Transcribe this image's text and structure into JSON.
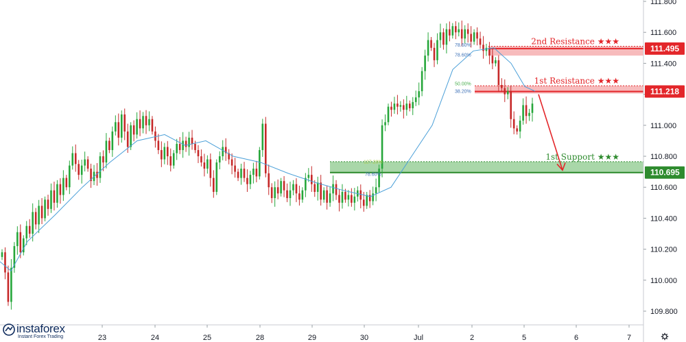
{
  "chart_data": {
    "type": "candlestick",
    "y_axis": {
      "position": "right",
      "range": [
        109.72,
        111.84
      ],
      "ticks": [
        "109.800",
        "110.000",
        "110.200",
        "110.400",
        "110.600",
        "110.800",
        "111.000",
        "111.200",
        "111.400",
        "111.600",
        "111.800"
      ]
    },
    "x_axis": {
      "labels": [
        "23",
        "24",
        "25",
        "28",
        "29",
        "30",
        "Jul",
        "2",
        "5",
        "6",
        "7"
      ]
    },
    "grid": false,
    "zones": [
      {
        "name": "2nd Resistance",
        "label": "2nd Resistance",
        "stars": "★★★",
        "price": 111.495,
        "price_label": "111.495",
        "low": 111.45,
        "high": 111.51,
        "color": "#e3262a",
        "fill": "#f4a4a6"
      },
      {
        "name": "1st Resistance",
        "label": "1st Resistance",
        "stars": "★★★",
        "price": 111.218,
        "price_label": "111.218",
        "low": 111.205,
        "high": 111.255,
        "color": "#e3262a",
        "fill": "#f4a4a6"
      },
      {
        "name": "1st Support",
        "label": "1st Support",
        "stars": "★★★",
        "price": 110.695,
        "price_label": "110.695",
        "low": 110.69,
        "high": 110.765,
        "color": "#2e8b2e",
        "fill": "#8cc98c"
      }
    ],
    "fib_labels": [
      {
        "text": "78.60%",
        "price": 111.52,
        "color": "#3b6fb6"
      },
      {
        "text": "78.60%",
        "price": 111.455,
        "color": "#3b6fb6"
      },
      {
        "text": "50.00%",
        "price": 111.27,
        "color": "#4caf50"
      },
      {
        "text": "38.20%",
        "price": 111.22,
        "color": "#3b6fb6"
      },
      {
        "text": "127.20%",
        "price": 110.765,
        "color": "#a6c94a"
      },
      {
        "text": "78.60%",
        "price": 110.685,
        "color": "#3b6fb6"
      }
    ],
    "closes": [
      110.18,
      110.05,
      109.86,
      110.08,
      110.22,
      110.31,
      110.18,
      110.27,
      110.35,
      110.3,
      110.44,
      110.36,
      110.48,
      110.4,
      110.52,
      110.46,
      110.58,
      110.5,
      110.62,
      110.55,
      110.66,
      110.6,
      110.74,
      110.82,
      110.75,
      110.68,
      110.74,
      110.78,
      110.72,
      110.64,
      110.7,
      110.66,
      110.8,
      110.76,
      110.9,
      110.84,
      110.96,
      111.02,
      110.92,
      111.07,
      110.96,
      110.86,
      111.0,
      110.94,
      111.04,
      110.98,
      111.06,
      111.0,
      111.04,
      110.96,
      110.9,
      110.84,
      110.78,
      110.86,
      110.8,
      110.74,
      110.82,
      110.88,
      110.84,
      110.9,
      110.86,
      110.92,
      110.88,
      110.84,
      110.8,
      110.76,
      110.72,
      110.78,
      110.66,
      110.57,
      110.76,
      110.8,
      110.86,
      110.82,
      110.78,
      110.74,
      110.7,
      110.66,
      110.72,
      110.66,
      110.62,
      110.68,
      110.72,
      110.67,
      110.84,
      111.01,
      110.69,
      110.6,
      110.53,
      110.6,
      110.56,
      110.64,
      110.58,
      110.53,
      110.58,
      110.62,
      110.56,
      110.52,
      110.58,
      110.66,
      110.68,
      110.62,
      110.57,
      110.63,
      110.52,
      110.58,
      110.5,
      110.56,
      110.62,
      110.55,
      110.5,
      110.57,
      110.52,
      110.55,
      110.5,
      110.54,
      110.58,
      110.52,
      110.48,
      110.55,
      110.51,
      110.56,
      110.6,
      110.72,
      111.0,
      111.02,
      111.12,
      111.1,
      111.14,
      111.12,
      111.13,
      111.1,
      111.14,
      111.11,
      111.15,
      111.18,
      111.22,
      111.35,
      111.45,
      111.55,
      111.5,
      111.42,
      111.55,
      111.6,
      111.52,
      111.62,
      111.58,
      111.64,
      111.6,
      111.62,
      111.56,
      111.62,
      111.59,
      111.54,
      111.6,
      111.56,
      111.52,
      111.48,
      111.5,
      111.45,
      111.4,
      111.42,
      111.26,
      111.24,
      111.2,
      111.22,
      111.04,
      110.98,
      110.96,
      111.03,
      111.13,
      111.06,
      111.08,
      111.14
    ],
    "moving_average": {
      "price_points": [
        [
          0,
          110.12
        ],
        [
          16,
          110.06
        ],
        [
          40,
          110.25
        ],
        [
          80,
          110.42
        ],
        [
          120,
          110.6
        ],
        [
          160,
          110.76
        ],
        [
          200,
          110.9
        ],
        [
          240,
          110.94
        ],
        [
          270,
          110.87
        ],
        [
          300,
          110.9
        ],
        [
          340,
          110.8
        ],
        [
          380,
          110.76
        ],
        [
          420,
          110.69
        ],
        [
          460,
          110.63
        ],
        [
          500,
          110.58
        ],
        [
          540,
          110.54
        ],
        [
          570,
          110.6
        ],
        [
          600,
          110.8
        ],
        [
          630,
          111.0
        ],
        [
          660,
          111.36
        ],
        [
          690,
          111.48
        ],
        [
          720,
          111.5
        ],
        [
          745,
          111.4
        ],
        [
          765,
          111.25
        ],
        [
          780,
          111.22
        ]
      ],
      "color": "#4a9fd8"
    },
    "arrow": {
      "from_price": 111.2,
      "to_price": 110.71,
      "color": "#e3262a"
    }
  },
  "watermark": {
    "name": "instaforex",
    "tagline": "Instant Forex Trading"
  },
  "colors": {
    "bull": "#26a63a",
    "bear": "#c62828",
    "axis_text": "#131722"
  },
  "icons": {
    "settings": "gear-icon"
  }
}
